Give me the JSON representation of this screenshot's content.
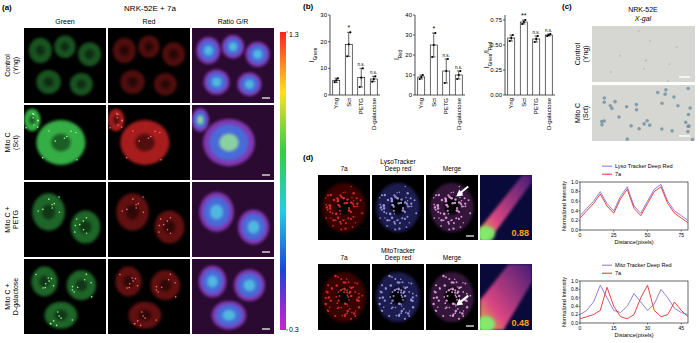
{
  "figure": {
    "panel_labels": [
      "(a)",
      "(b)",
      "(c)",
      "(d)"
    ],
    "a": {
      "title": "NRK-52E + 7a",
      "columns": [
        "Green",
        "Red",
        "Ratio G/R"
      ],
      "rows": [
        "Control (Yng)",
        "Mito C (Sct)",
        "Mito C + PETG",
        "Mito C + D-galactose"
      ],
      "colorbar": {
        "range": [
          0.3,
          1.3
        ],
        "ticks": [
          0.3,
          1.3
        ]
      }
    },
    "c": {
      "title": "NRK-52E",
      "subtitle": "X-gal",
      "rows": [
        "Control (Yng)",
        "Mito C (Sct)"
      ]
    },
    "d": {
      "rows": [
        {
          "columns": [
            "7a",
            "LysoTracker Deep red",
            "Merge"
          ],
          "pearson": 0.88
        },
        {
          "columns": [
            "7a",
            "MitoTracker Deep red",
            "Merge"
          ],
          "pearson": 0.48
        }
      ]
    }
  },
  "chart_data": [
    {
      "type": "bar",
      "y_label": [
        {
          "text": "I",
          "sub": false
        },
        {
          "text": "Green",
          "sub": true
        }
      ],
      "categories": [
        "Yng",
        "Sct",
        "PETG",
        "D-galactose"
      ],
      "values": [
        5.5,
        19,
        6.5,
        6
      ],
      "errors": [
        0.8,
        4.5,
        3.5,
        1
      ],
      "points": [
        [
          4.8,
          5.5,
          6.2
        ],
        [
          14.5,
          19,
          23.5
        ],
        [
          3,
          6.5,
          10
        ],
        [
          5,
          6,
          7
        ]
      ],
      "annotations": [
        null,
        "*",
        "n.s.",
        "n.s."
      ],
      "ylim": [
        0,
        30
      ],
      "yticks": [
        0,
        10,
        20,
        30
      ],
      "color": "#ffffff"
    },
    {
      "type": "bar",
      "y_label": [
        {
          "text": "I",
          "sub": false
        },
        {
          "text": "Red",
          "sub": true
        }
      ],
      "categories": [
        "Yng",
        "Sct",
        "PETG",
        "D-galactose"
      ],
      "values": [
        9,
        25,
        12,
        10
      ],
      "errors": [
        1,
        6,
        6,
        2
      ],
      "points": [
        [
          8,
          9,
          10
        ],
        [
          19,
          25,
          31
        ],
        [
          6,
          12,
          18
        ],
        [
          8,
          10,
          12
        ]
      ],
      "annotations": [
        null,
        "*",
        "n.s.",
        "n.s."
      ],
      "ylim": [
        0,
        40
      ],
      "yticks": [
        0,
        10,
        20,
        30,
        40
      ],
      "color": "#ffffff"
    },
    {
      "type": "bar",
      "y_label": [
        {
          "text": "I",
          "sub": false
        },
        {
          "text": "Green",
          "sub": true
        },
        {
          "text": "/I",
          "sub": false
        },
        {
          "text": "Red",
          "sub": true
        }
      ],
      "categories": [
        "Yng",
        "Sct",
        "PETG",
        "D-galactose"
      ],
      "values": [
        0.57,
        0.73,
        0.56,
        0.6
      ],
      "errors": [
        0.03,
        0.02,
        0.03,
        0.01
      ],
      "points": [
        [
          0.54,
          0.57,
          0.6
        ],
        [
          0.71,
          0.73,
          0.75
        ],
        [
          0.53,
          0.56,
          0.59
        ],
        [
          0.59,
          0.6,
          0.61
        ]
      ],
      "annotations": [
        null,
        "**",
        "n.s.",
        "n.s."
      ],
      "ylim": [
        0,
        0.8
      ],
      "yticks": [
        {
          "value": 0,
          "label": "0.00"
        },
        0.25,
        {
          "value": 0.5,
          "label": "0.50"
        },
        0.75
      ],
      "color": "#ffffff"
    },
    {
      "type": "line",
      "x_label": "Distance(pixels)",
      "y_label": "Normalized Intensity",
      "x": [
        0,
        5,
        10,
        15,
        20,
        25,
        30,
        35,
        40,
        45,
        50,
        55,
        60,
        65,
        70,
        75,
        80
      ],
      "xlim": [
        0,
        80
      ],
      "xticks": [
        0,
        25,
        50,
        75
      ],
      "ylim": [
        0,
        1
      ],
      "yticks": [
        {
          "value": 0,
          "label": "0.0"
        },
        0.2,
        0.4,
        0.6,
        0.8,
        {
          "value": 1,
          "label": "1.0"
        }
      ],
      "legend": "top",
      "series": [
        {
          "name": "Lyso Tracker Deep Red",
          "color": "#8a6fd6",
          "values": [
            0.3,
            0.45,
            0.6,
            0.8,
            0.55,
            0.4,
            0.7,
            0.9,
            0.5,
            0.35,
            0.6,
            0.85,
            0.95,
            0.6,
            0.4,
            0.3,
            0.2
          ]
        },
        {
          "name": "7a",
          "color": "#e03030",
          "values": [
            0.25,
            0.4,
            0.55,
            0.75,
            0.5,
            0.35,
            0.65,
            0.85,
            0.45,
            0.3,
            0.55,
            0.8,
            0.9,
            0.55,
            0.35,
            0.25,
            0.15
          ]
        }
      ]
    },
    {
      "type": "line",
      "x_label": "Distance(pixels)",
      "y_label": "Normalized Intensity",
      "x": [
        0,
        3,
        6,
        9,
        12,
        15,
        18,
        21,
        24,
        27,
        30,
        33,
        36,
        39,
        42,
        45,
        48
      ],
      "xlim": [
        0,
        48
      ],
      "xticks": [
        0,
        15,
        30,
        45
      ],
      "ylim": [
        0,
        1
      ],
      "yticks": [
        {
          "value": 0,
          "label": "0.0"
        },
        0.2,
        0.4,
        0.6,
        0.8,
        {
          "value": 1,
          "label": "1.0"
        }
      ],
      "legend": "top",
      "series": [
        {
          "name": "Mito Tracker Deep Red",
          "color": "#8a6fd6",
          "values": [
            0.2,
            0.3,
            0.5,
            0.9,
            0.6,
            0.3,
            0.25,
            0.4,
            0.7,
            0.5,
            0.3,
            0.45,
            0.8,
            0.6,
            0.35,
            0.25,
            0.2
          ]
        },
        {
          "name": "7a",
          "color": "#e03030",
          "values": [
            0.1,
            0.15,
            0.2,
            0.3,
            0.85,
            0.4,
            0.15,
            0.1,
            0.2,
            0.6,
            0.9,
            0.3,
            0.15,
            0.2,
            0.5,
            0.3,
            0.15
          ]
        }
      ]
    }
  ]
}
